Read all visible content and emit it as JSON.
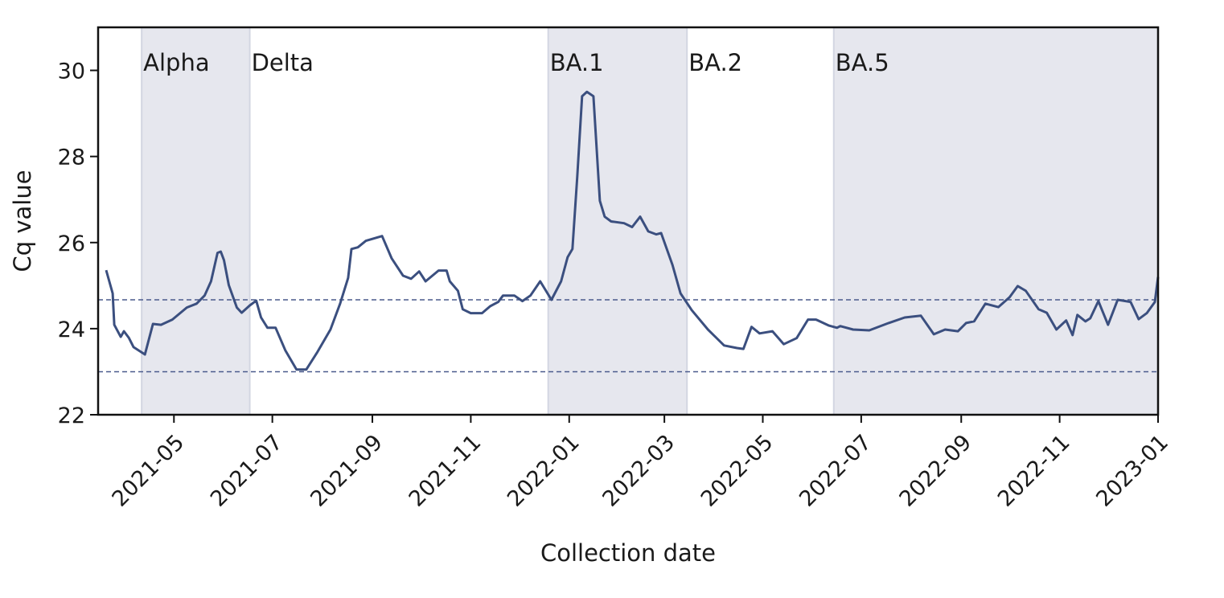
{
  "chart_data": {
    "type": "line",
    "title": "",
    "xlabel": "Collection date",
    "ylabel": "Cq value",
    "x_origin": "2021-03-15",
    "x_unit": "days since x_origin",
    "xlim": [
      "2021-03-15",
      "2023-01-01"
    ],
    "ylim": [
      22,
      31
    ],
    "grid": false,
    "yticks": [
      22,
      24,
      26,
      28,
      30
    ],
    "xticks": [
      "2021-05",
      "2021-07",
      "2021-09",
      "2021-11",
      "2022-01",
      "2022-03",
      "2022-05",
      "2022-07",
      "2022-09",
      "2022-11",
      "2023-01"
    ],
    "reference_lines": [
      24.67,
      23.0
    ],
    "variant_periods": [
      {
        "name": "Alpha",
        "start": "2021-04-11",
        "end": "2021-06-17",
        "shaded": true
      },
      {
        "name": "Delta",
        "start": "2021-06-17",
        "end": "2021-12-19",
        "shaded": false
      },
      {
        "name": "BA.1",
        "start": "2021-12-19",
        "end": "2022-03-15",
        "shaded": true
      },
      {
        "name": "BA.2",
        "start": "2022-03-15",
        "end": "2022-06-14",
        "shaded": false
      },
      {
        "name": "BA.5",
        "start": "2022-06-14",
        "end": "2023-01-01",
        "shaded": true
      }
    ],
    "colors": {
      "line": "#3b4f7f",
      "shade": "#e6e7ee",
      "reference": "#4a5a8c",
      "axis": "#111111"
    },
    "series": [
      {
        "name": "Cq value",
        "x": [
          5,
          9,
          10,
          14,
          16,
          19,
          22,
          29,
          34,
          39,
          46,
          55,
          61,
          66,
          70,
          74,
          76,
          78,
          81,
          86,
          89,
          94,
          98,
          101,
          105,
          110,
          116,
          123,
          129,
          136,
          144,
          150,
          155,
          157,
          161,
          166,
          176,
          182,
          189,
          194,
          199,
          203,
          211,
          216,
          218,
          223,
          226,
          231,
          238,
          243,
          248,
          251,
          258,
          263,
          268,
          274,
          281,
          287,
          291,
          294,
          297,
          300,
          303,
          307,
          311,
          314,
          318,
          326,
          331,
          336,
          341,
          346,
          349,
          356,
          361,
          368,
          378,
          388,
          396,
          400,
          405,
          410,
          418,
          425,
          433,
          440,
          445,
          453,
          458,
          460,
          468,
          478,
          490,
          500,
          510,
          518,
          525,
          533,
          538,
          543,
          550,
          558,
          565,
          570,
          575,
          583,
          588,
          594,
          600,
          604,
          607,
          612,
          615,
          620,
          626,
          632,
          640,
          645,
          650,
          655,
          657
        ],
        "y": [
          25.36,
          24.82,
          24.09,
          23.81,
          23.94,
          23.79,
          23.57,
          23.4,
          24.11,
          24.09,
          24.21,
          24.49,
          24.58,
          24.77,
          25.1,
          25.76,
          25.79,
          25.59,
          25.01,
          24.49,
          24.37,
          24.54,
          24.65,
          24.26,
          24.02,
          24.02,
          23.5,
          23.05,
          23.05,
          23.46,
          23.98,
          24.58,
          25.18,
          25.85,
          25.89,
          26.04,
          26.15,
          25.63,
          25.23,
          25.16,
          25.33,
          25.1,
          25.35,
          25.35,
          25.1,
          24.88,
          24.45,
          24.36,
          24.36,
          24.52,
          24.62,
          24.77,
          24.77,
          24.64,
          24.77,
          25.1,
          24.67,
          25.1,
          25.66,
          25.85,
          27.53,
          29.4,
          29.5,
          29.4,
          26.97,
          26.6,
          26.49,
          26.45,
          26.36,
          26.6,
          26.26,
          26.19,
          26.22,
          25.48,
          24.82,
          24.43,
          23.98,
          23.61,
          23.55,
          23.53,
          24.04,
          23.89,
          23.94,
          23.64,
          23.78,
          24.21,
          24.21,
          24.07,
          24.02,
          24.06,
          23.98,
          23.96,
          24.13,
          24.26,
          24.3,
          23.87,
          23.98,
          23.94,
          24.13,
          24.17,
          24.58,
          24.5,
          24.73,
          24.99,
          24.88,
          24.45,
          24.37,
          23.98,
          24.19,
          23.85,
          24.32,
          24.17,
          24.24,
          24.64,
          24.09,
          24.67,
          24.62,
          24.22,
          24.36,
          24.62,
          25.2
        ]
      }
    ]
  }
}
